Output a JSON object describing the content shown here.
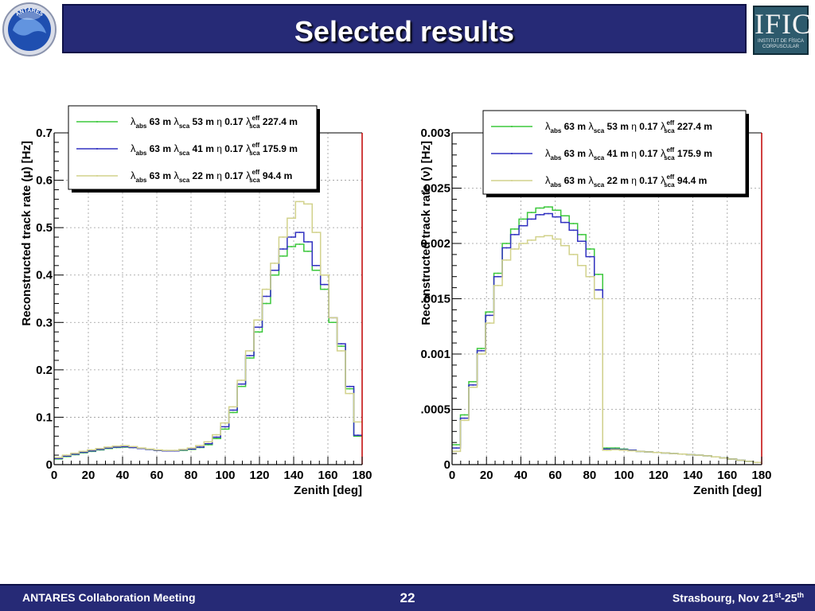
{
  "slide": {
    "title": "Selected results",
    "logo_left": "ANTARES",
    "logo_right_main": "IFIC",
    "logo_right_sub": "INSTITUT DE FÍSICA CORPUSCULAR",
    "footer_left": "ANTARES Collaboration Meeting",
    "page_number": "22",
    "footer_right_main": "Strasbourg, Nov 21",
    "footer_right_sup1": "st",
    "footer_right_dash": "-25",
    "footer_right_sup2": "th"
  },
  "colors": {
    "title_bar": "#262a76",
    "series_53": "#3cc83c",
    "series_41": "#3030c0",
    "series_22": "#d2d28c",
    "frame_right": "#c00000"
  },
  "chart_data": [
    {
      "type": "line",
      "step": true,
      "xlabel": "Zenith [deg]",
      "ylabel": "Reconstructed track rate (μ) [Hz]",
      "xlim": [
        0,
        180
      ],
      "ylim": [
        0,
        0.7
      ],
      "xticks": [
        0,
        20,
        40,
        60,
        80,
        100,
        120,
        140,
        160,
        180
      ],
      "xtick_labels": [
        "0",
        "20",
        "40",
        "60",
        "80",
        "100",
        "120",
        "140",
        "160",
        "180"
      ],
      "yticks": [
        0,
        0.1,
        0.2,
        0.3,
        0.4,
        0.5,
        0.6,
        0.7
      ],
      "ytick_labels": [
        "0",
        "0.1",
        "0.2",
        "0.3",
        "0.4",
        "0.5",
        "0.6",
        "0.7"
      ],
      "grid": true,
      "legend_position": "top",
      "x": [
        0,
        5,
        10,
        15,
        20,
        25,
        30,
        35,
        40,
        45,
        50,
        55,
        60,
        65,
        70,
        75,
        80,
        85,
        90,
        95,
        100,
        105,
        110,
        115,
        120,
        125,
        130,
        135,
        140,
        145,
        150,
        155,
        160,
        165,
        170,
        175,
        180
      ],
      "series": [
        {
          "name": "λabs 63 m λsca 53 m η 0.17 λsca eff 227.4 m",
          "color": "#3cc83c",
          "values": [
            0.012,
            0.017,
            0.021,
            0.025,
            0.028,
            0.031,
            0.034,
            0.036,
            0.037,
            0.036,
            0.034,
            0.032,
            0.03,
            0.029,
            0.029,
            0.03,
            0.032,
            0.036,
            0.042,
            0.055,
            0.075,
            0.11,
            0.165,
            0.225,
            0.28,
            0.34,
            0.4,
            0.44,
            0.46,
            0.465,
            0.45,
            0.41,
            0.37,
            0.3,
            0.25,
            0.16,
            0.06
          ]
        },
        {
          "name": "λabs 63 m λsca 41 m η 0.17 λsca eff 175.9 m",
          "color": "#3030c0",
          "values": [
            0.013,
            0.018,
            0.022,
            0.026,
            0.029,
            0.032,
            0.035,
            0.037,
            0.038,
            0.036,
            0.034,
            0.032,
            0.03,
            0.029,
            0.029,
            0.031,
            0.033,
            0.037,
            0.044,
            0.058,
            0.08,
            0.115,
            0.17,
            0.23,
            0.29,
            0.355,
            0.41,
            0.455,
            0.48,
            0.49,
            0.47,
            0.42,
            0.38,
            0.31,
            0.255,
            0.165,
            0.062
          ]
        },
        {
          "name": "λabs 63 m λsca 22 m η 0.17 λsca eff 94.4 m",
          "color": "#d2d28c",
          "values": [
            0.015,
            0.02,
            0.024,
            0.028,
            0.031,
            0.034,
            0.037,
            0.039,
            0.04,
            0.038,
            0.035,
            0.033,
            0.031,
            0.03,
            0.03,
            0.032,
            0.035,
            0.04,
            0.048,
            0.063,
            0.088,
            0.122,
            0.178,
            0.24,
            0.305,
            0.37,
            0.425,
            0.48,
            0.52,
            0.555,
            0.55,
            0.49,
            0.4,
            0.31,
            0.24,
            0.15,
            0.09
          ]
        }
      ]
    },
    {
      "type": "line",
      "step": true,
      "xlabel": "Zenith [deg]",
      "ylabel": "Reconstructed track rate (ν) [Hz]",
      "xlim": [
        0,
        180
      ],
      "ylim": [
        0,
        0.003
      ],
      "xticks": [
        0,
        20,
        40,
        60,
        80,
        100,
        120,
        140,
        160,
        180
      ],
      "xtick_labels": [
        "0",
        "20",
        "40",
        "60",
        "80",
        "100",
        "120",
        "140",
        "160",
        "180"
      ],
      "yticks": [
        0,
        0.0005,
        0.001,
        0.0015,
        0.002,
        0.0025,
        0.003
      ],
      "ytick_labels": [
        "0",
        ".0005",
        "0.001",
        ".0015",
        "0.002",
        ".0025",
        "0.003"
      ],
      "grid": true,
      "legend_position": "top",
      "x": [
        0,
        5,
        10,
        15,
        20,
        25,
        30,
        35,
        40,
        45,
        50,
        55,
        60,
        65,
        70,
        75,
        80,
        85,
        90,
        95,
        100,
        105,
        110,
        115,
        120,
        125,
        130,
        135,
        140,
        145,
        150,
        155,
        160,
        165,
        170,
        175,
        180
      ],
      "series": [
        {
          "name": "λabs 63 m λsca 53 m η 0.17 λsca eff 227.4 m",
          "color": "#3cc83c",
          "values": [
            0.00018,
            0.00045,
            0.00075,
            0.00105,
            0.00138,
            0.00173,
            0.002,
            0.00213,
            0.00222,
            0.00228,
            0.00232,
            0.00233,
            0.0023,
            0.00225,
            0.00218,
            0.00208,
            0.00195,
            0.00172,
            0.00015,
            0.00015,
            0.00014,
            0.00013,
            0.00012,
            0.000115,
            0.00011,
            0.000105,
            0.0001,
            9.5e-05,
            9e-05,
            8.5e-05,
            8e-05,
            7e-05,
            6e-05,
            5e-05,
            4e-05,
            3e-05,
            2e-05
          ]
        },
        {
          "name": "λabs 63 m λsca 41 m η 0.17 λsca eff 175.9 m",
          "color": "#3030c0",
          "values": [
            0.00015,
            0.00042,
            0.00072,
            0.00103,
            0.00135,
            0.0017,
            0.00196,
            0.00208,
            0.00216,
            0.00222,
            0.00226,
            0.00227,
            0.00224,
            0.00219,
            0.00212,
            0.00202,
            0.00188,
            0.00158,
            0.00014,
            0.00014,
            0.000135,
            0.00013,
            0.00012,
            0.000115,
            0.00011,
            0.000105,
            0.0001,
            9.5e-05,
            9e-05,
            8.5e-05,
            8e-05,
            7e-05,
            6e-05,
            5e-05,
            4e-05,
            3e-05,
            2e-05
          ]
        },
        {
          "name": "λabs 63 m λsca 22 m η 0.17 λsca eff 94.4 m",
          "color": "#d2d28c",
          "values": [
            0.00012,
            0.0004,
            0.0007,
            0.001,
            0.00128,
            0.00162,
            0.00185,
            0.00195,
            0.002,
            0.00203,
            0.00206,
            0.00207,
            0.00204,
            0.00198,
            0.0019,
            0.0018,
            0.0017,
            0.0015,
            0.00013,
            0.000135,
            0.00013,
            0.000125,
            0.00012,
            0.000115,
            0.00011,
            0.000105,
            0.0001,
            9.5e-05,
            9e-05,
            8.5e-05,
            8e-05,
            7e-05,
            6e-05,
            5e-05,
            4e-05,
            3e-05,
            2e-05
          ]
        }
      ]
    }
  ]
}
